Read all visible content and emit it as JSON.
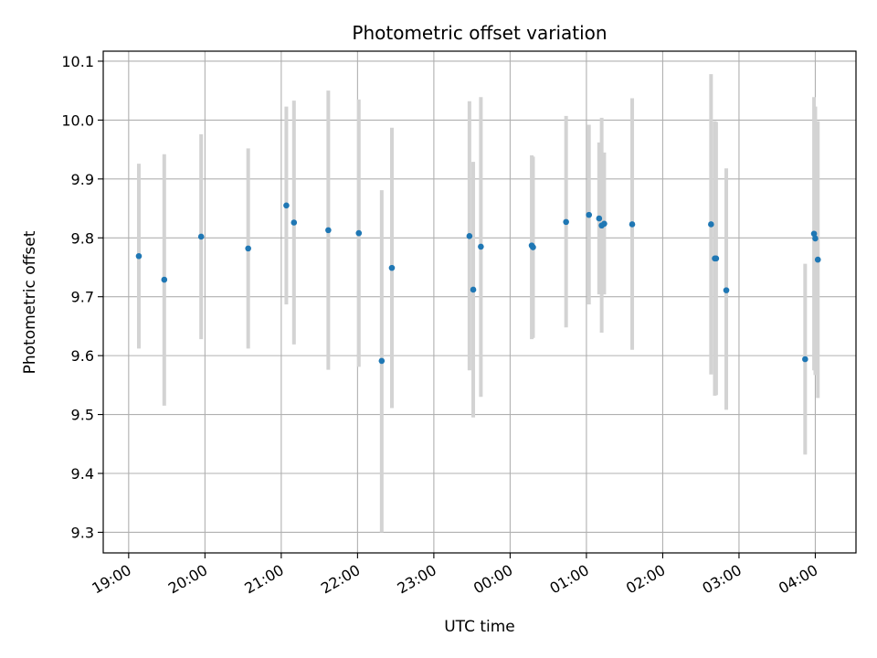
{
  "chart_data": {
    "type": "scatter",
    "title": "Photometric offset variation",
    "xlabel": "UTC time",
    "ylabel": "Photometric offset",
    "grid": true,
    "legend": "none",
    "x_range": [
      "18:40",
      "04:32"
    ],
    "ylim": [
      9.265,
      10.117
    ],
    "x_ticks": [
      "19:00",
      "20:00",
      "21:00",
      "22:00",
      "23:00",
      "00:00",
      "01:00",
      "02:00",
      "03:00",
      "04:00"
    ],
    "y_ticks": [
      "9.3",
      "9.4",
      "9.5",
      "9.6",
      "9.7",
      "9.8",
      "9.9",
      "10.0",
      "10.1"
    ],
    "colors": {
      "points": "#1f77b4",
      "error_bars": "#d3d3d3",
      "grid": "#b0b0b0"
    },
    "series": [
      {
        "points": [
          {
            "t": "19:08",
            "y": 9.769,
            "low": 9.612,
            "high": 9.926
          },
          {
            "t": "19:28",
            "y": 9.729,
            "low": 9.515,
            "high": 9.942
          },
          {
            "t": "19:57",
            "y": 9.802,
            "low": 9.628,
            "high": 9.976
          },
          {
            "t": "20:34",
            "y": 9.782,
            "low": 9.612,
            "high": 9.952
          },
          {
            "t": "21:04",
            "y": 9.855,
            "low": 9.687,
            "high": 10.023
          },
          {
            "t": "21:10",
            "y": 9.826,
            "low": 9.619,
            "high": 10.033
          },
          {
            "t": "21:37",
            "y": 9.813,
            "low": 9.576,
            "high": 10.05
          },
          {
            "t": "22:01",
            "y": 9.808,
            "low": 9.581,
            "high": 10.035
          },
          {
            "t": "22:19",
            "y": 9.591,
            "low": 9.3,
            "high": 9.881
          },
          {
            "t": "22:27",
            "y": 9.749,
            "low": 9.511,
            "high": 9.987
          },
          {
            "t": "23:28",
            "y": 9.803,
            "low": 9.575,
            "high": 10.032
          },
          {
            "t": "23:31",
            "y": 9.712,
            "low": 9.495,
            "high": 9.929
          },
          {
            "t": "23:37",
            "y": 9.785,
            "low": 9.53,
            "high": 10.039
          },
          {
            "t": "00:17",
            "y": 9.787,
            "low": 9.628,
            "high": 9.94
          },
          {
            "t": "00:18",
            "y": 9.784,
            "low": 9.63,
            "high": 9.938
          },
          {
            "t": "00:44",
            "y": 9.827,
            "low": 9.648,
            "high": 10.007
          },
          {
            "t": "01:02",
            "y": 9.839,
            "low": 9.687,
            "high": 9.992
          },
          {
            "t": "01:10",
            "y": 9.833,
            "low": 9.704,
            "high": 9.962
          },
          {
            "t": "01:12",
            "y": 9.821,
            "low": 9.639,
            "high": 10.004
          },
          {
            "t": "01:14",
            "y": 9.824,
            "low": 9.704,
            "high": 9.945
          },
          {
            "t": "01:36",
            "y": 9.823,
            "low": 9.61,
            "high": 10.037
          },
          {
            "t": "02:38",
            "y": 9.823,
            "low": 9.568,
            "high": 10.078
          },
          {
            "t": "02:41",
            "y": 9.765,
            "low": 9.532,
            "high": 9.998
          },
          {
            "t": "02:42",
            "y": 9.765,
            "low": 9.533,
            "high": 9.997
          },
          {
            "t": "02:50",
            "y": 9.711,
            "low": 9.508,
            "high": 9.918
          },
          {
            "t": "03:52",
            "y": 9.594,
            "low": 9.432,
            "high": 9.756
          },
          {
            "t": "03:59",
            "y": 9.807,
            "low": 9.575,
            "high": 10.039
          },
          {
            "t": "04:00",
            "y": 9.799,
            "low": 9.567,
            "high": 10.023
          },
          {
            "t": "04:02",
            "y": 9.763,
            "low": 9.528,
            "high": 9.998
          }
        ]
      }
    ]
  }
}
